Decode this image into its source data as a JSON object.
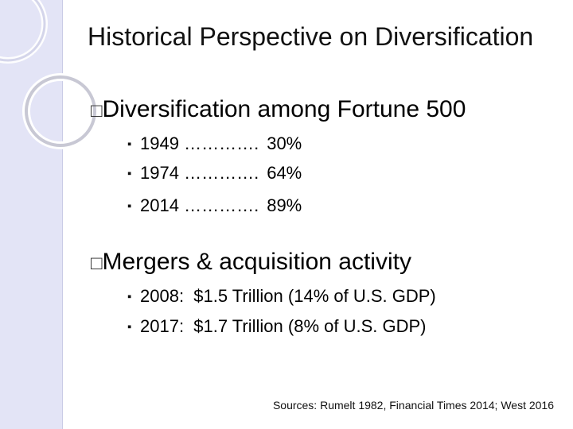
{
  "slide": {
    "title": "Historical Perspective on Diversification",
    "sections": [
      {
        "bullet_glyph": "□",
        "heading": "Diversification among Fortune 500",
        "items": [
          {
            "year": "1949",
            "dots": "………….",
            "value": "30%"
          },
          {
            "year": "1974",
            "dots": "………….",
            "value": "64%"
          },
          {
            "year": "2014",
            "dots": "………….",
            "value": "89%"
          }
        ]
      },
      {
        "bullet_glyph": "□",
        "heading": "Mergers & acquisition activity",
        "items": [
          {
            "text": "2008:  $1.5 Trillion (14% of U.S. GDP)"
          },
          {
            "text": "2017:  $1.7 Trillion (8% of U.S. GDP)"
          }
        ]
      }
    ],
    "sub_bullet_glyph": "▪",
    "sources": "Sources: Rumelt 1982, Financial Times 2014; West 2016"
  },
  "colors": {
    "sidebar": "#e3e4f6",
    "ring": "#c8c8d4",
    "text": "#000000"
  },
  "icons": [
    "decorative-ring-icon"
  ]
}
